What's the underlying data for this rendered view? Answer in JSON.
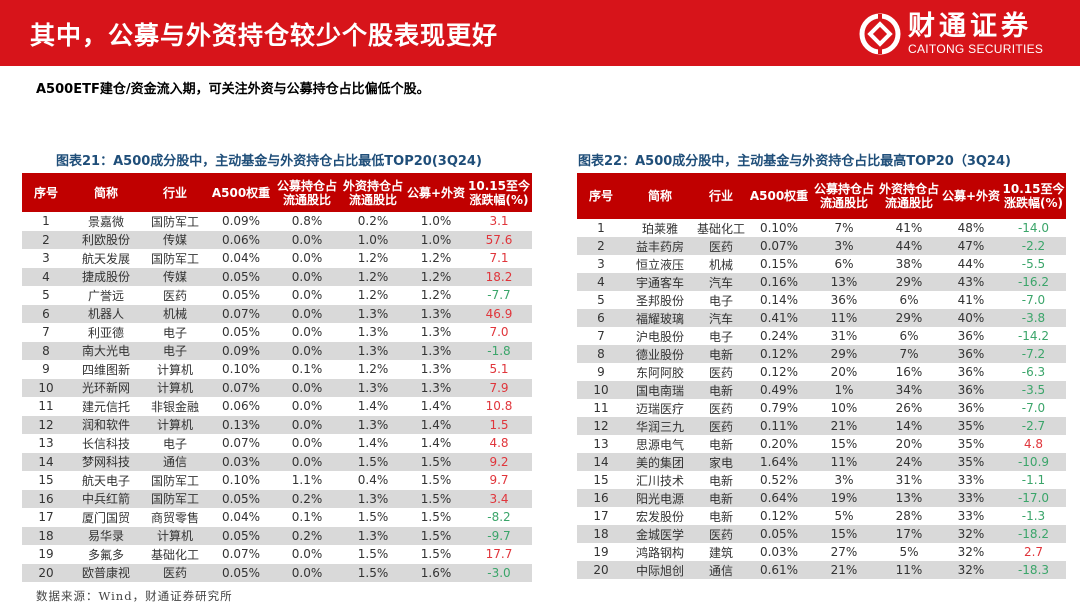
{
  "header": {
    "title": "其中，公募与外资持仓较少个股表现更好",
    "logo_cn": "财通证券",
    "logo_en": "CAITONG SECURITIES",
    "brand_color": "#d7141a"
  },
  "subtitle": "A500ETF建仓/资金流入期，可关注外资与公募持仓占比偏低个股。",
  "columns": [
    "序号",
    "简称",
    "行业",
    "A500权重",
    "公募持仓占流通股比",
    "外资持仓占流通股比",
    "公募+外资",
    "10.15至今涨跌幅(%)"
  ],
  "colors": {
    "header_bg": "#c00000",
    "band": "#d9d9d9",
    "up": "#e0353b",
    "down": "#3ba56a",
    "caption": "#1f4e79"
  },
  "table_low": {
    "caption": "图表21：A500成分股中，主动基金与外资持仓占比最低TOP20(3Q24)",
    "rows": [
      [
        "1",
        "景嘉微",
        "国防军工",
        "0.09%",
        "0.8%",
        "0.2%",
        "1.0%",
        "3.1"
      ],
      [
        "2",
        "利欧股份",
        "传媒",
        "0.06%",
        "0.0%",
        "1.0%",
        "1.0%",
        "57.6"
      ],
      [
        "3",
        "航天发展",
        "国防军工",
        "0.04%",
        "0.0%",
        "1.2%",
        "1.2%",
        "7.1"
      ],
      [
        "4",
        "捷成股份",
        "传媒",
        "0.05%",
        "0.0%",
        "1.2%",
        "1.2%",
        "18.2"
      ],
      [
        "5",
        "广誉远",
        "医药",
        "0.05%",
        "0.0%",
        "1.2%",
        "1.2%",
        "-7.7"
      ],
      [
        "6",
        "机器人",
        "机械",
        "0.07%",
        "0.0%",
        "1.3%",
        "1.3%",
        "46.9"
      ],
      [
        "7",
        "利亚德",
        "电子",
        "0.05%",
        "0.0%",
        "1.3%",
        "1.3%",
        "7.0"
      ],
      [
        "8",
        "南大光电",
        "电子",
        "0.09%",
        "0.0%",
        "1.3%",
        "1.3%",
        "-1.8"
      ],
      [
        "9",
        "四维图新",
        "计算机",
        "0.10%",
        "0.1%",
        "1.2%",
        "1.3%",
        "5.1"
      ],
      [
        "10",
        "光环新网",
        "计算机",
        "0.07%",
        "0.0%",
        "1.3%",
        "1.3%",
        "7.9"
      ],
      [
        "11",
        "建元信托",
        "非银金融",
        "0.06%",
        "0.0%",
        "1.4%",
        "1.4%",
        "10.8"
      ],
      [
        "12",
        "润和软件",
        "计算机",
        "0.13%",
        "0.0%",
        "1.3%",
        "1.4%",
        "1.5"
      ],
      [
        "13",
        "长信科技",
        "电子",
        "0.07%",
        "0.0%",
        "1.4%",
        "1.4%",
        "4.8"
      ],
      [
        "14",
        "梦网科技",
        "通信",
        "0.03%",
        "0.0%",
        "1.5%",
        "1.5%",
        "9.2"
      ],
      [
        "15",
        "航天电子",
        "国防军工",
        "0.10%",
        "1.1%",
        "0.4%",
        "1.5%",
        "9.7"
      ],
      [
        "16",
        "中兵红箭",
        "国防军工",
        "0.05%",
        "0.2%",
        "1.3%",
        "1.5%",
        "3.4"
      ],
      [
        "17",
        "厦门国贸",
        "商贸零售",
        "0.04%",
        "0.1%",
        "1.5%",
        "1.5%",
        "-8.2"
      ],
      [
        "18",
        "易华录",
        "计算机",
        "0.05%",
        "0.2%",
        "1.3%",
        "1.5%",
        "-9.7"
      ],
      [
        "19",
        "多氟多",
        "基础化工",
        "0.07%",
        "0.0%",
        "1.5%",
        "1.5%",
        "17.7"
      ],
      [
        "20",
        "欧普康视",
        "医药",
        "0.05%",
        "0.0%",
        "1.5%",
        "1.6%",
        "-3.0"
      ]
    ]
  },
  "table_high": {
    "caption": "图表22：A500成分股中，主动基金与外资持仓占比最高TOP20（3Q24)",
    "rows": [
      [
        "1",
        "珀莱雅",
        "基础化工",
        "0.10%",
        "7%",
        "41%",
        "48%",
        "-14.0"
      ],
      [
        "2",
        "益丰药房",
        "医药",
        "0.07%",
        "3%",
        "44%",
        "47%",
        "-2.2"
      ],
      [
        "3",
        "恒立液压",
        "机械",
        "0.15%",
        "6%",
        "38%",
        "44%",
        "-5.5"
      ],
      [
        "4",
        "宇通客车",
        "汽车",
        "0.16%",
        "13%",
        "29%",
        "43%",
        "-16.2"
      ],
      [
        "5",
        "圣邦股份",
        "电子",
        "0.14%",
        "36%",
        "6%",
        "41%",
        "-7.0"
      ],
      [
        "6",
        "福耀玻璃",
        "汽车",
        "0.41%",
        "11%",
        "29%",
        "40%",
        "-3.8"
      ],
      [
        "7",
        "沪电股份",
        "电子",
        "0.24%",
        "31%",
        "6%",
        "36%",
        "-14.2"
      ],
      [
        "8",
        "德业股份",
        "电新",
        "0.12%",
        "29%",
        "7%",
        "36%",
        "-7.2"
      ],
      [
        "9",
        "东阿阿胶",
        "医药",
        "0.12%",
        "20%",
        "16%",
        "36%",
        "-6.3"
      ],
      [
        "10",
        "国电南瑞",
        "电新",
        "0.49%",
        "1%",
        "34%",
        "36%",
        "-3.5"
      ],
      [
        "11",
        "迈瑞医疗",
        "医药",
        "0.79%",
        "10%",
        "26%",
        "36%",
        "-7.0"
      ],
      [
        "12",
        "华润三九",
        "医药",
        "0.11%",
        "21%",
        "14%",
        "35%",
        "-2.7"
      ],
      [
        "13",
        "思源电气",
        "电新",
        "0.20%",
        "15%",
        "20%",
        "35%",
        "4.8"
      ],
      [
        "14",
        "美的集团",
        "家电",
        "1.64%",
        "11%",
        "24%",
        "35%",
        "-10.9"
      ],
      [
        "15",
        "汇川技术",
        "电新",
        "0.52%",
        "3%",
        "31%",
        "33%",
        "-1.1"
      ],
      [
        "16",
        "阳光电源",
        "电新",
        "0.64%",
        "19%",
        "13%",
        "33%",
        "-17.0"
      ],
      [
        "17",
        "宏发股份",
        "电新",
        "0.12%",
        "5%",
        "28%",
        "33%",
        "-1.3"
      ],
      [
        "18",
        "金城医学",
        "医药",
        "0.05%",
        "15%",
        "17%",
        "32%",
        "-18.2"
      ],
      [
        "19",
        "鸿路钢构",
        "建筑",
        "0.03%",
        "27%",
        "5%",
        "32%",
        "2.7"
      ],
      [
        "20",
        "中际旭创",
        "通信",
        "0.61%",
        "21%",
        "11%",
        "32%",
        "-18.3"
      ]
    ]
  },
  "source": "数据来源：Wind，财通证券研究所"
}
